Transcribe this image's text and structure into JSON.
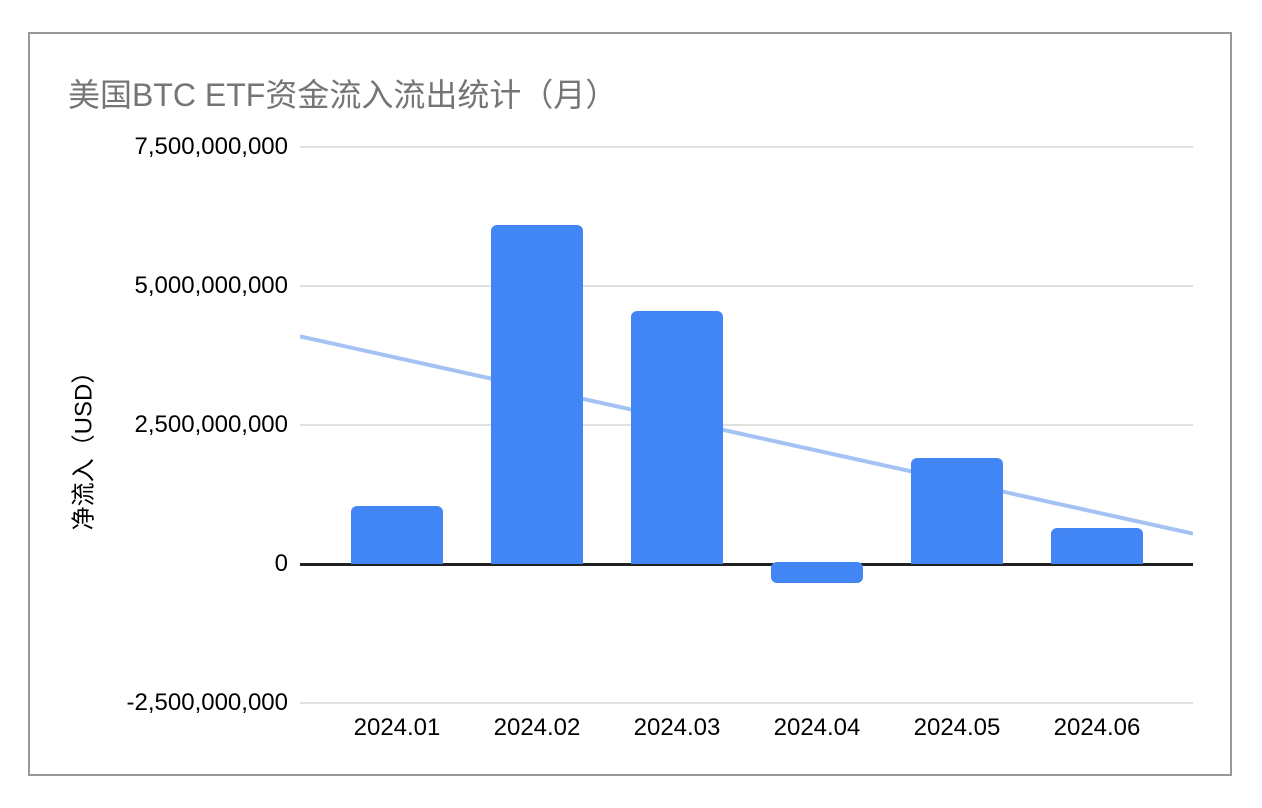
{
  "chart_data": {
    "type": "bar",
    "title": "美国BTC ETF资金流入流出统计（月）",
    "ylabel": "净流入（USD）",
    "xlabel": "",
    "categories": [
      "2024.01",
      "2024.02",
      "2024.03",
      "2024.04",
      "2024.05",
      "2024.06"
    ],
    "values": [
      1050000000,
      6100000000,
      4550000000,
      -350000000,
      1900000000,
      650000000
    ],
    "yticks": [
      7500000000,
      5000000000,
      2500000000,
      0,
      -2500000000
    ],
    "ytick_labels": [
      "7,500,000,000",
      "5,000,000,000",
      "2,500,000,000",
      "0",
      "-2,500,000,000"
    ],
    "ylim": [
      -2500000000,
      7500000000
    ],
    "grid": true,
    "legend": "none",
    "bar_color": "#4285f4",
    "trendline": {
      "type": "linear",
      "left_edge_value": 4090000000,
      "right_edge_value": 550000000,
      "color": "#a4c2f4"
    }
  },
  "colors": {
    "title_text": "#757575",
    "axis_text": "#000000",
    "gridline": "#e0e0e0",
    "zero_axis": "#212121",
    "card_border": "#999999",
    "background": "#ffffff"
  }
}
